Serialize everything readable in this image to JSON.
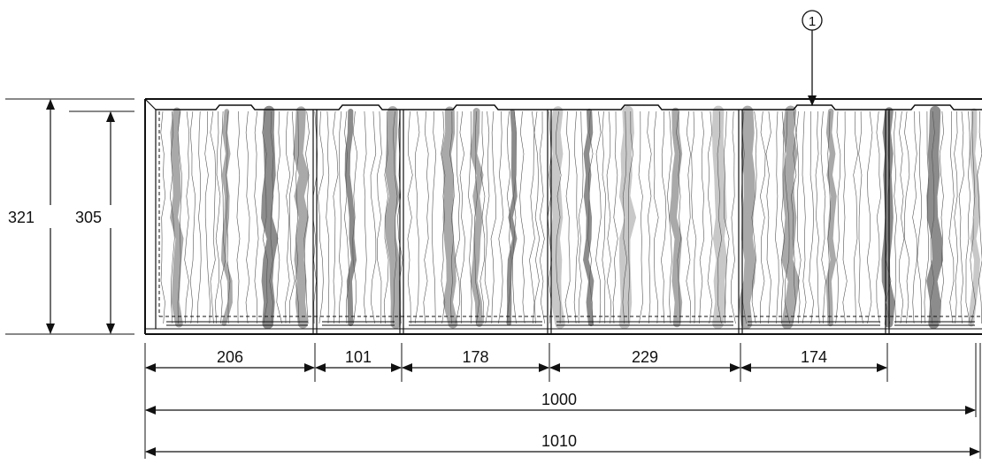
{
  "callout": {
    "number": "1"
  },
  "dimensions": {
    "overall_height": "321",
    "panel_height": "305",
    "panel_widths": [
      "206",
      "101",
      "178",
      "229",
      "174"
    ],
    "inner_length": "1000",
    "overall_length": "1010"
  },
  "colors": {
    "line": "#111111",
    "grain_dark": "#8c8c8c",
    "grain_mid": "#a9a9a9",
    "grain_light": "#c8c8c8",
    "background": "#ffffff"
  }
}
